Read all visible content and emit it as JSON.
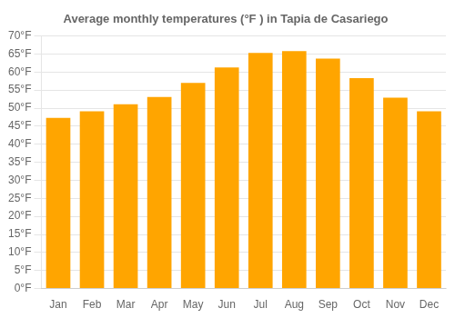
{
  "chart_data": {
    "type": "bar",
    "title": "Average monthly temperatures (°F ) in Tapia de Casariego",
    "categories": [
      "Jan",
      "Feb",
      "Mar",
      "Apr",
      "May",
      "Jun",
      "Jul",
      "Aug",
      "Sep",
      "Oct",
      "Nov",
      "Dec"
    ],
    "values": [
      47.3,
      49.1,
      51.1,
      53.1,
      57.0,
      61.3,
      65.3,
      65.8,
      63.7,
      58.3,
      52.9,
      49.1
    ],
    "color": "#FFA500",
    "ylim": [
      0,
      70
    ],
    "yticks": [
      {
        "value": 0,
        "label": "0°F"
      },
      {
        "value": 5,
        "label": "5°F"
      },
      {
        "value": 10,
        "label": "10°F"
      },
      {
        "value": 15,
        "label": "15°F"
      },
      {
        "value": 20,
        "label": "20°F"
      },
      {
        "value": 25,
        "label": "25°F"
      },
      {
        "value": 30,
        "label": "30°F"
      },
      {
        "value": 35,
        "label": "35°F"
      },
      {
        "value": 40,
        "label": "40°F"
      },
      {
        "value": 45,
        "label": "45°F"
      },
      {
        "value": 50,
        "label": "50°F"
      },
      {
        "value": 55,
        "label": "55°F"
      },
      {
        "value": 60,
        "label": "60°F"
      },
      {
        "value": 65,
        "label": "65°F"
      },
      {
        "value": 70,
        "label": "70°F"
      }
    ],
    "grid": true
  }
}
